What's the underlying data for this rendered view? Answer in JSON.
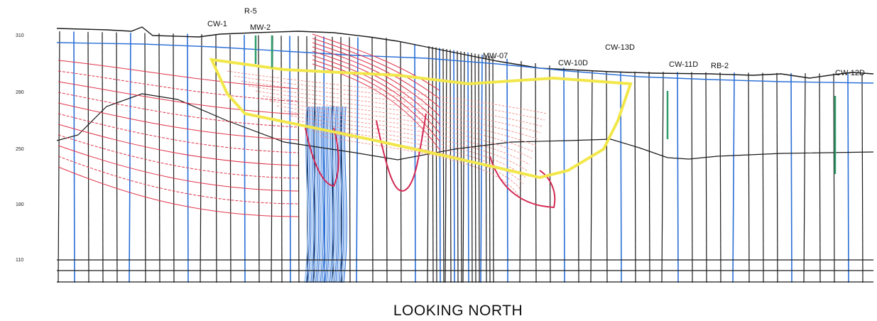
{
  "figure": {
    "caption": "LOOKING NORTH",
    "elevation_ticks": [
      "310",
      "280",
      "250",
      "180",
      "110"
    ],
    "well_labels": [
      "R-5",
      "CW-1",
      "MW-2",
      "CW-10D",
      "CW-13D",
      "CW-11D",
      "RB-2",
      "CW-12D",
      "MW-07"
    ],
    "colors": {
      "ground_surface": "#1a1a1a",
      "boreholes": "#1a1a1a",
      "blue_contours": "#2a6fd6",
      "red_contours": "#e0334a",
      "pink_contours": "#f08a84",
      "highlight_polygon": "#f2e74a",
      "green_screens": "#2f9d6a"
    }
  }
}
